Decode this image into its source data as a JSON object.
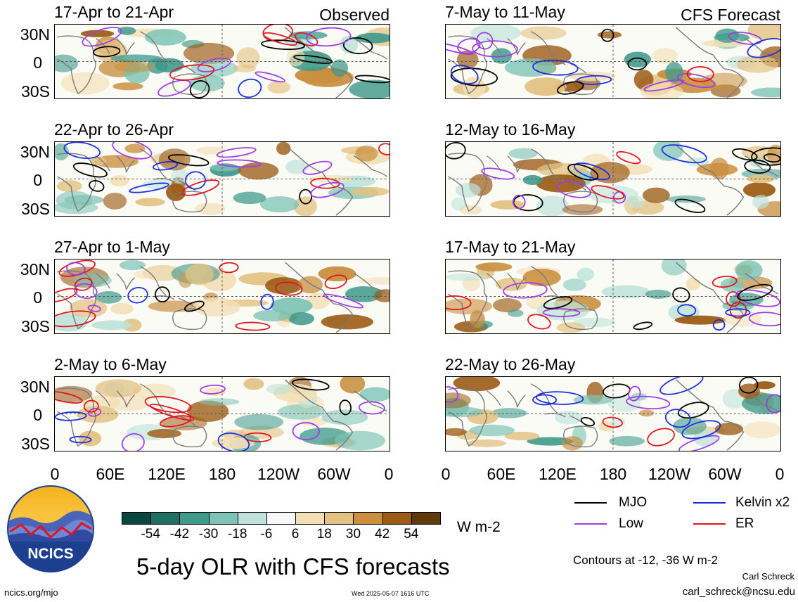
{
  "panels": [
    {
      "title": "17-Apr to 21-Apr",
      "tag": "Observed"
    },
    {
      "title": "7-May to 11-May",
      "tag": "CFS Forecast"
    },
    {
      "title": "22-Apr to 26-Apr",
      "tag": ""
    },
    {
      "title": "12-May to 16-May",
      "tag": ""
    },
    {
      "title": "27-Apr to 1-May",
      "tag": ""
    },
    {
      "title": "17-May to 21-May",
      "tag": ""
    },
    {
      "title": "2-May to 6-May",
      "tag": ""
    },
    {
      "title": "22-May to 26-May",
      "tag": ""
    }
  ],
  "lat_labels": [
    "30N",
    "0",
    "30S"
  ],
  "lon_labels": [
    "0",
    "60E",
    "120E",
    "180",
    "120W",
    "60W",
    "0"
  ],
  "colorbar": {
    "labels": [
      "-54",
      "-42",
      "-30",
      "-18",
      "-6",
      "6",
      "18",
      "30",
      "42",
      "54"
    ],
    "units": "W m-2",
    "colors": [
      "#0b4640",
      "#1f6f64",
      "#3f9a8b",
      "#7ec4b6",
      "#bfe3db",
      "#f7f7f7",
      "#f3dfb6",
      "#e3c283",
      "#c98e3e",
      "#9c5c17",
      "#5e3a0d"
    ]
  },
  "legend": {
    "mjo": "MJO",
    "kelvin": "Kelvin x2",
    "low": "Low",
    "er": "ER",
    "colors": {
      "mjo": "#000000",
      "kelvin": "#1a2de0",
      "low": "#a03ce6",
      "er": "#e0141e"
    }
  },
  "title": "5-day OLR with CFS forecasts",
  "contours_note": "Contours at -12, -36 W m-2",
  "author": "Carl Schreck",
  "email": "carl_schreck@ncsu.edu",
  "url": "ncics.org/mjo",
  "timestamp": "Wed 2025-05-07 1616 UTC",
  "logo_text": "NCICS"
}
